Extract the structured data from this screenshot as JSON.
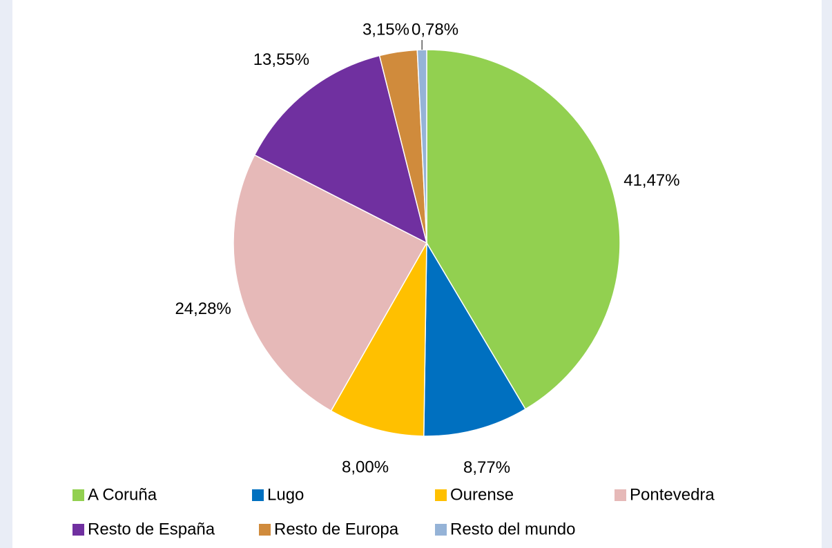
{
  "chart_data": {
    "type": "pie",
    "categories": [
      "A Coruña",
      "Lugo",
      "Ourense",
      "Pontevedra",
      "Resto de España",
      "Resto de Europa",
      "Resto del mundo"
    ],
    "values": [
      41.47,
      8.77,
      8.0,
      24.28,
      13.55,
      3.15,
      0.78
    ],
    "value_labels": [
      "41,47%",
      "8,77%",
      "8,00%",
      "24,28%",
      "13,55%",
      "3,15%",
      "0,78%"
    ],
    "colors": [
      "#92d050",
      "#0070c0",
      "#ffc000",
      "#e6b9b8",
      "#7030a0",
      "#d08b3c",
      "#95b3d7"
    ],
    "legend": "bottom"
  }
}
